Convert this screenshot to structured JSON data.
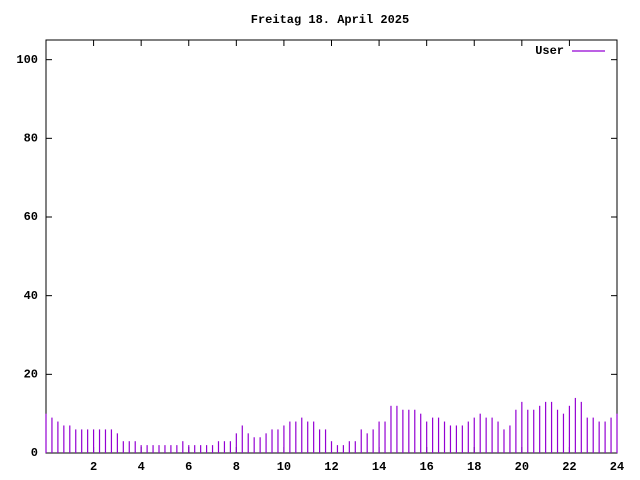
{
  "chart_data": {
    "type": "impulses",
    "title": "Freitag 18. April 2025",
    "series": [
      {
        "name": "User",
        "color": "#9400d3",
        "x": [
          0,
          0.25,
          0.5,
          0.75,
          1,
          1.25,
          1.5,
          1.75,
          2,
          2.25,
          2.5,
          2.75,
          3,
          3.25,
          3.5,
          3.75,
          4,
          4.25,
          4.5,
          4.75,
          5,
          5.25,
          5.5,
          5.75,
          6,
          6.25,
          6.5,
          6.75,
          7,
          7.25,
          7.5,
          7.75,
          8,
          8.25,
          8.5,
          8.75,
          9,
          9.25,
          9.5,
          9.75,
          10,
          10.25,
          10.5,
          10.75,
          11,
          11.25,
          11.5,
          11.75,
          12,
          12.25,
          12.5,
          12.75,
          13,
          13.25,
          13.5,
          13.75,
          14,
          14.25,
          14.5,
          14.75,
          15,
          15.25,
          15.5,
          15.75,
          16,
          16.25,
          16.5,
          16.75,
          17,
          17.25,
          17.5,
          17.75,
          18,
          18.25,
          18.5,
          18.75,
          19,
          19.25,
          19.5,
          19.75,
          20,
          20.25,
          20.5,
          20.75,
          21,
          21.25,
          21.5,
          21.75,
          22,
          22.25,
          22.5,
          22.75,
          23,
          23.25,
          23.5,
          23.75,
          24
        ],
        "values": [
          10,
          9,
          8,
          7,
          7,
          6,
          6,
          6,
          6,
          6,
          6,
          6,
          5,
          3,
          3,
          3,
          2,
          2,
          2,
          2,
          2,
          2,
          2,
          3,
          2,
          2,
          2,
          2,
          2,
          3,
          3,
          3,
          5,
          7,
          5,
          4,
          4,
          5,
          6,
          6,
          7,
          8,
          8,
          9,
          8,
          8,
          6,
          6,
          3,
          2,
          2,
          3,
          3,
          6,
          5,
          6,
          8,
          8,
          12,
          12,
          11,
          11,
          11,
          10,
          8,
          9,
          9,
          8,
          7,
          7,
          7,
          8,
          9,
          10,
          9,
          9,
          8,
          6,
          7,
          11,
          13,
          11,
          11,
          12,
          13,
          13,
          11,
          10,
          12,
          14,
          13,
          9,
          9,
          8,
          8,
          9,
          10
        ]
      }
    ],
    "xlim": [
      0,
      24
    ],
    "xticks": [
      2,
      4,
      6,
      8,
      10,
      12,
      14,
      16,
      18,
      20,
      22,
      24
    ],
    "ylim": [
      0,
      105
    ],
    "yticks": [
      0,
      20,
      40,
      60,
      80,
      100
    ],
    "legend": "top-right"
  }
}
